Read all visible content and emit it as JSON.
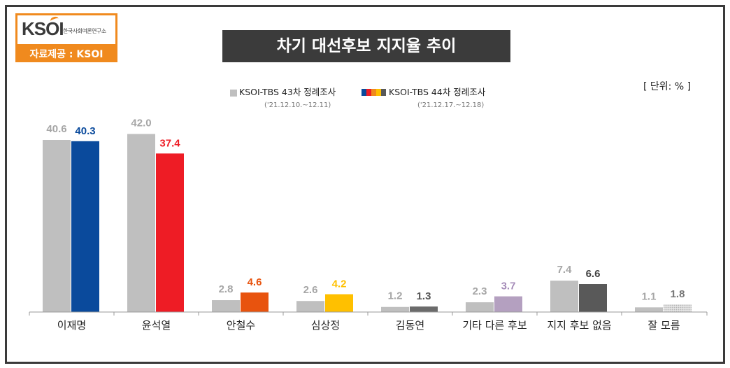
{
  "logo": {
    "mark": "KSOI",
    "subtitle": "한국사회여론연구소",
    "source": "자료제공 : KSOI"
  },
  "chart_data": {
    "type": "bar",
    "title": "차기 대선후보 지지율 추이",
    "unit_label": "[ 단위: % ]",
    "categories": [
      "이재명",
      "윤석열",
      "안철수",
      "심상정",
      "김동연",
      "기타 다른 후보",
      "지지 후보 없음",
      "잘 모름"
    ],
    "series": [
      {
        "name": "KSOI-TBS 43차 정례조사",
        "period": "('21.12.10.~12.11)",
        "values": [
          40.6,
          42.0,
          2.8,
          2.6,
          1.2,
          2.3,
          7.4,
          1.1
        ],
        "color": "#bfbfbf"
      },
      {
        "name": "KSOI-TBS 44차 정례조사",
        "period": "('21.12.17.~12.18)",
        "values": [
          40.3,
          37.4,
          4.6,
          4.2,
          1.3,
          3.7,
          6.6,
          1.8
        ],
        "colors": [
          "#0a4a9c",
          "#ee1c25",
          "#e8530e",
          "#ffc000",
          "#6b6b6b",
          "#b4a0c0",
          "#595959",
          "#d9d9d9"
        ],
        "label_colors": [
          "#0a4a9c",
          "#ee1c25",
          "#e8530e",
          "#ffc000",
          "#555555",
          "#a58bb8",
          "#404040",
          "#777777"
        ]
      }
    ],
    "prev_label_color": "#a6a6a6",
    "ylim": [
      0,
      45
    ],
    "legend_strip_colors": [
      "#0a4a9c",
      "#ee1c25",
      "#f08a1e",
      "#ffc000",
      "#595959"
    ]
  }
}
